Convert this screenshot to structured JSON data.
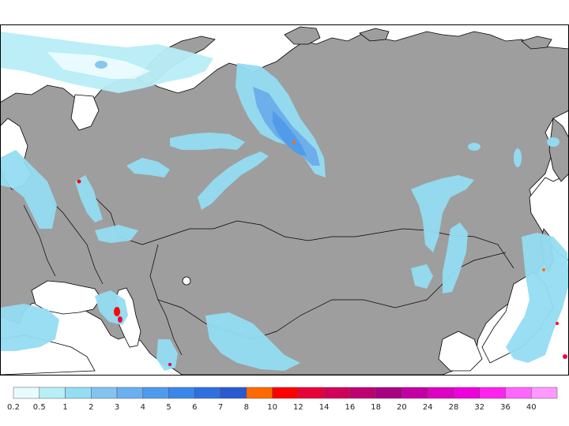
{
  "map": {
    "land_color": "#9e9e9e",
    "water_color": "#ffffff",
    "border_color": "#000000"
  },
  "legend": {
    "labels": [
      "0.2",
      "0.5",
      "1",
      "2",
      "3",
      "4",
      "5",
      "6",
      "7",
      "8",
      "10",
      "12",
      "14",
      "16",
      "18",
      "20",
      "24",
      "28",
      "32",
      "36",
      "40"
    ],
    "colors": [
      "#e8fbff",
      "#b8eef6",
      "#94ddf2",
      "#82c4ef",
      "#6ab0f0",
      "#4e9bed",
      "#3b86ea",
      "#2f70e0",
      "#2a5ad0",
      "#ff6a00",
      "#ff0000",
      "#e8003a",
      "#d1005a",
      "#be0070",
      "#aa0082",
      "#c400a4",
      "#dc00c2",
      "#ee00dc",
      "#ff22ee",
      "#ff66ff",
      "#ff99ff"
    ]
  }
}
